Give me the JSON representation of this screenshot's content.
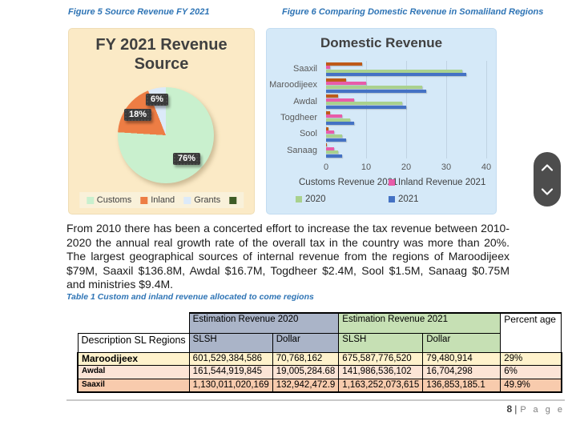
{
  "captions": {
    "figure5": "Figure 5 Source Revenue FY 2021",
    "figure6": "Figure 6 Comparing Domestic Revenue in Somaliland Regions",
    "table1": "Table 1 Custom and inland revenue allocated to come regions"
  },
  "paragraph": "From 2010 there has been a concerted effort to increase the tax revenue between 2010-2020 the annual real growth rate of the overall tax in the country was more than 20%. The largest geographical sources of internal revenue from the regions of Maroodijeex $79M, Saaxil $136.8M, Awdal $16.7M, Togdheer $2.4M, Sool $1.5M, Sanaag $0.75M and ministries $9.4M.",
  "chart_data": [
    {
      "type": "pie",
      "title": "FY 2021 Revenue Source",
      "labels": [
        "Customs",
        "Inland",
        "Grants"
      ],
      "values": [
        76,
        18,
        6
      ],
      "data_labels": [
        "76%",
        "18%",
        "6%"
      ],
      "colors": [
        "#C9F0CE",
        "#ED7D44",
        "#DCEAF9"
      ],
      "legend_extra_color": "#3E5C26",
      "legend_position": "bottom",
      "background": "#FBEAC6",
      "label_box_color": "#3A3A3A"
    },
    {
      "type": "bar",
      "orientation": "horizontal",
      "title": "Domestic Revenue",
      "categories": [
        "Saaxil",
        "Maroodijeex",
        "Awdal",
        "Togdheer",
        "Sool",
        "Sanaag"
      ],
      "series": [
        {
          "name": "Customs Revenue 2021",
          "color": "#BE5A18",
          "values": [
            9,
            5,
            3,
            1,
            0.5,
            0.25
          ]
        },
        {
          "name": "Inland Revenue 2021",
          "color": "#E85CA9",
          "values": [
            1,
            10,
            7,
            4,
            2,
            2
          ]
        },
        {
          "name": "2020",
          "color": "#A9D18E",
          "values": [
            34,
            24,
            19,
            6,
            4,
            3
          ]
        },
        {
          "name": "2021",
          "color": "#4472C4",
          "values": [
            35,
            25,
            20,
            7,
            5,
            4
          ]
        }
      ],
      "xlim": [
        0,
        40
      ],
      "x_ticks": [
        0,
        10,
        20,
        30,
        40
      ],
      "grid": true,
      "legend_position": "bottom",
      "background": "#D5E9F8"
    }
  ],
  "table": {
    "group_2020": "Estimation Revenue 2020",
    "group_2021": "Estimation Revenue 2021",
    "percentage_label": "Percent age",
    "description_label": "Description SL Regions",
    "slsh_label": "SLSH",
    "dollar_label": "Dollar",
    "header_colors": {
      "group_2020": "#AAB4C8",
      "group_2021": "#C6E0B4"
    },
    "rows": [
      {
        "region": "Maroodijeex",
        "slsh_2020": "601,529,384,586",
        "dollar_2020": "70,768,162",
        "slsh_2021": "675,587,776,520",
        "dollar_2021": "79,480,914",
        "percentage": "29%",
        "color": "#FFF2CC"
      },
      {
        "region": "Awdal",
        "slsh_2020": "161,544,919,845",
        "dollar_2020": "19,005,284.68",
        "slsh_2021": "141,986,536,102",
        "dollar_2021": "16,704,298",
        "percentage": "6%",
        "color": "#FCE4D6"
      },
      {
        "region": "Saaxil",
        "slsh_2020": "1,130,011,020,169",
        "dollar_2020": "132,942,472.9",
        "slsh_2021": "1,163,252,073,615",
        "dollar_2021": "136,853,185.1",
        "percentage": "49.9%",
        "color": "#F8CBAD"
      }
    ]
  },
  "footer": {
    "page_number": "8",
    "separator": "|",
    "label": "P a g e"
  },
  "scroll": {
    "up_icon": "chevron-up",
    "down_icon": "chevron-down"
  }
}
